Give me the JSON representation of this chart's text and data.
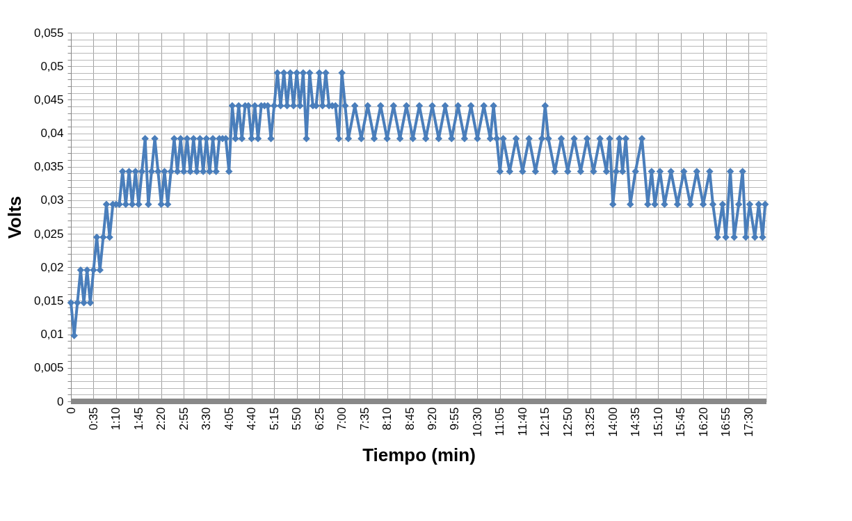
{
  "chart_data": {
    "type": "line",
    "xlabel": "Tiempo (min)",
    "ylabel": "Volts",
    "x": [
      0,
      5,
      10,
      15,
      20,
      25,
      30,
      35,
      40,
      45,
      50,
      55,
      60,
      65,
      70,
      75,
      80,
      85,
      90,
      95,
      100,
      105,
      110,
      115,
      120,
      125,
      130,
      135,
      140,
      145,
      150,
      155,
      160,
      165,
      170,
      175,
      180,
      185,
      190,
      195,
      200,
      205,
      210,
      215,
      220,
      225,
      230,
      235,
      240,
      245,
      250,
      255,
      260,
      265,
      270,
      275,
      280,
      285,
      290,
      295,
      300,
      305,
      310,
      315,
      320,
      325,
      330,
      335,
      340,
      345,
      350,
      355,
      360,
      365,
      370,
      375,
      380,
      385,
      390,
      395,
      400,
      405,
      410,
      415,
      420,
      425,
      430,
      440,
      450,
      460,
      470,
      480,
      490,
      500,
      510,
      520,
      530,
      540,
      550,
      560,
      570,
      580,
      590,
      600,
      610,
      620,
      630,
      640,
      650,
      655,
      660,
      665,
      670,
      680,
      690,
      700,
      710,
      720,
      730,
      735,
      740,
      750,
      760,
      770,
      780,
      790,
      800,
      810,
      820,
      830,
      835,
      840,
      845,
      850,
      855,
      860,
      867,
      875,
      885,
      894,
      900,
      905,
      913,
      920,
      930,
      940,
      950,
      960,
      970,
      980,
      990,
      995,
      1002,
      1010,
      1015,
      1022,
      1028,
      1035,
      1041,
      1046,
      1052,
      1060,
      1066,
      1072,
      1076
    ],
    "series": [
      {
        "color": "#4a7ebb",
        "values": [
          0.0147,
          0.0098,
          0.0147,
          0.0196,
          0.0147,
          0.0196,
          0.0147,
          0.0196,
          0.0245,
          0.0196,
          0.0245,
          0.0294,
          0.0245,
          0.0294,
          0.0294,
          0.0294,
          0.0343,
          0.0294,
          0.0343,
          0.0294,
          0.0343,
          0.0294,
          0.0343,
          0.0392,
          0.0294,
          0.0343,
          0.0392,
          0.0343,
          0.0294,
          0.0343,
          0.0294,
          0.0343,
          0.0392,
          0.0343,
          0.0392,
          0.0343,
          0.0392,
          0.0343,
          0.0392,
          0.0343,
          0.0392,
          0.0343,
          0.0392,
          0.0343,
          0.0392,
          0.0343,
          0.0392,
          0.0392,
          0.0392,
          0.0343,
          0.0441,
          0.0392,
          0.0441,
          0.0392,
          0.0441,
          0.0441,
          0.0392,
          0.0441,
          0.0392,
          0.0441,
          0.0441,
          0.0441,
          0.0392,
          0.0441,
          0.049,
          0.0441,
          0.049,
          0.0441,
          0.049,
          0.0441,
          0.049,
          0.0441,
          0.049,
          0.0392,
          0.049,
          0.0441,
          0.0441,
          0.049,
          0.0441,
          0.049,
          0.0441,
          0.0441,
          0.0441,
          0.0392,
          0.049,
          0.0441,
          0.0392,
          0.0441,
          0.0392,
          0.0441,
          0.0392,
          0.0441,
          0.0392,
          0.0441,
          0.0392,
          0.0441,
          0.0392,
          0.0441,
          0.0392,
          0.0441,
          0.0392,
          0.0441,
          0.0392,
          0.0441,
          0.0392,
          0.0441,
          0.0392,
          0.0441,
          0.0392,
          0.0441,
          0.0392,
          0.0343,
          0.0392,
          0.0343,
          0.0392,
          0.0343,
          0.0392,
          0.0343,
          0.0392,
          0.0441,
          0.0392,
          0.0343,
          0.0392,
          0.0343,
          0.0392,
          0.0343,
          0.0392,
          0.0343,
          0.0392,
          0.0343,
          0.0392,
          0.0294,
          0.0343,
          0.0392,
          0.0343,
          0.0392,
          0.0294,
          0.0343,
          0.0392,
          0.0294,
          0.0343,
          0.0294,
          0.0343,
          0.0294,
          0.0343,
          0.0294,
          0.0343,
          0.0294,
          0.0343,
          0.0294,
          0.0343,
          0.0294,
          0.0245,
          0.0294,
          0.0245,
          0.0343,
          0.0245,
          0.0294,
          0.0343,
          0.0245,
          0.0294,
          0.0245,
          0.0294,
          0.0245,
          0.0294
        ]
      }
    ],
    "xlim": [
      0,
      1078
    ],
    "xticks": [
      {
        "value": 0,
        "label": "0"
      },
      {
        "value": 35,
        "label": "0:35"
      },
      {
        "value": 70,
        "label": "1:10"
      },
      {
        "value": 105,
        "label": "1:45"
      },
      {
        "value": 140,
        "label": "2:20"
      },
      {
        "value": 175,
        "label": "2:55"
      },
      {
        "value": 210,
        "label": "3:30"
      },
      {
        "value": 245,
        "label": "4:05"
      },
      {
        "value": 280,
        "label": "4:40"
      },
      {
        "value": 315,
        "label": "5:15"
      },
      {
        "value": 350,
        "label": "5:50"
      },
      {
        "value": 385,
        "label": "6:25"
      },
      {
        "value": 420,
        "label": "7:00"
      },
      {
        "value": 455,
        "label": "7:35"
      },
      {
        "value": 490,
        "label": "8:10"
      },
      {
        "value": 525,
        "label": "8:45"
      },
      {
        "value": 560,
        "label": "9:20"
      },
      {
        "value": 595,
        "label": "9:55"
      },
      {
        "value": 630,
        "label": "10:30"
      },
      {
        "value": 665,
        "label": "11:05"
      },
      {
        "value": 700,
        "label": "11:40"
      },
      {
        "value": 735,
        "label": "12:15"
      },
      {
        "value": 770,
        "label": "12:50"
      },
      {
        "value": 805,
        "label": "13:25"
      },
      {
        "value": 840,
        "label": "14:00"
      },
      {
        "value": 875,
        "label": "14:35"
      },
      {
        "value": 910,
        "label": "15:10"
      },
      {
        "value": 945,
        "label": "15:45"
      },
      {
        "value": 980,
        "label": "16:20"
      },
      {
        "value": 1015,
        "label": "16:55"
      },
      {
        "value": 1050,
        "label": "17:30"
      }
    ],
    "ylim": [
      0,
      0.055
    ],
    "yticks": [
      0,
      {
        "value": 0.001,
        "label": null
      },
      {
        "value": 0.002,
        "label": null
      },
      {
        "value": 0.003,
        "label": null
      },
      {
        "value": 0.004,
        "label": null
      },
      {
        "value": 0.005,
        "label": "0,005"
      },
      {
        "value": 0.006,
        "label": null
      },
      {
        "value": 0.007,
        "label": null
      },
      {
        "value": 0.008,
        "label": null
      },
      {
        "value": 0.009,
        "label": null
      },
      {
        "value": 0.01,
        "label": "0,01"
      },
      {
        "value": 0.011,
        "label": null
      },
      {
        "value": 0.012,
        "label": null
      },
      {
        "value": 0.013,
        "label": null
      },
      {
        "value": 0.014,
        "label": null
      },
      {
        "value": 0.015,
        "label": "0,015"
      },
      {
        "value": 0.016,
        "label": null
      },
      {
        "value": 0.017,
        "label": null
      },
      {
        "value": 0.018,
        "label": null
      },
      {
        "value": 0.019,
        "label": null
      },
      {
        "value": 0.02,
        "label": "0,02"
      },
      {
        "value": 0.021,
        "label": null
      },
      {
        "value": 0.022,
        "label": null
      },
      {
        "value": 0.023,
        "label": null
      },
      {
        "value": 0.024,
        "label": null
      },
      {
        "value": 0.025,
        "label": "0,025"
      },
      {
        "value": 0.026,
        "label": null
      },
      {
        "value": 0.027,
        "label": null
      },
      {
        "value": 0.028,
        "label": null
      },
      {
        "value": 0.029,
        "label": null
      },
      {
        "value": 0.03,
        "label": "0,03"
      },
      {
        "value": 0.031,
        "label": null
      },
      {
        "value": 0.032,
        "label": null
      },
      {
        "value": 0.033,
        "label": null
      },
      {
        "value": 0.034,
        "label": null
      },
      {
        "value": 0.035,
        "label": "0,035"
      },
      {
        "value": 0.036,
        "label": null
      },
      {
        "value": 0.037,
        "label": null
      },
      {
        "value": 0.038,
        "label": null
      },
      {
        "value": 0.039,
        "label": null
      },
      {
        "value": 0.04,
        "label": "0,04"
      },
      {
        "value": 0.041,
        "label": null
      },
      {
        "value": 0.042,
        "label": null
      },
      {
        "value": 0.043,
        "label": null
      },
      {
        "value": 0.044,
        "label": null
      },
      {
        "value": 0.045,
        "label": "0,045"
      },
      {
        "value": 0.046,
        "label": null
      },
      {
        "value": 0.047,
        "label": null
      },
      {
        "value": 0.048,
        "label": null
      },
      {
        "value": 0.049,
        "label": null
      },
      {
        "value": 0.05,
        "label": "0,05"
      },
      {
        "value": 0.051,
        "label": null
      },
      {
        "value": 0.052,
        "label": null
      },
      {
        "value": 0.053,
        "label": null
      },
      {
        "value": 0.054,
        "label": null
      },
      {
        "value": 0.055,
        "label": "0,055"
      }
    ],
    "grid": true,
    "legend": false,
    "marker": "diamond",
    "line_style": "solid"
  }
}
